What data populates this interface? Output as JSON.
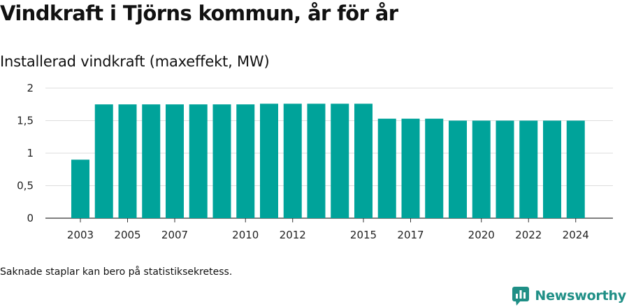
{
  "header": {
    "title": "Vindkraft i Tjörns kommun, år för år",
    "subtitle": "Installerad vindkraft (maxeffekt, MW)"
  },
  "footer": {
    "note": "Saknade staplar kan bero på statistiksekretess.",
    "brand": "Newsworthy"
  },
  "colors": {
    "bar": "#00a39a",
    "grid": "#dddddd",
    "brand": "#1f8f86"
  },
  "icons": {
    "brand_logo": "newsworthy-logo-icon"
  },
  "chart_data": {
    "type": "bar",
    "title": "Installerad vindkraft (maxeffekt, MW)",
    "xlabel": "",
    "ylabel": "",
    "ylim": [
      0,
      2
    ],
    "yticks": [
      0,
      0.5,
      1,
      1.5,
      2
    ],
    "ytick_labels": [
      "0",
      "0,5",
      "1",
      "1,5",
      "2"
    ],
    "grid": true,
    "legend": "none",
    "categories": [
      "2003",
      "2004",
      "2005",
      "2006",
      "2007",
      "2008",
      "2009",
      "2010",
      "2011",
      "2012",
      "2013",
      "2014",
      "2015",
      "2016",
      "2017",
      "2018",
      "2019",
      "2020",
      "2021",
      "2022",
      "2023",
      "2024"
    ],
    "values": [
      0.9,
      1.75,
      1.75,
      1.75,
      1.75,
      1.75,
      1.75,
      1.75,
      1.76,
      1.76,
      1.76,
      1.76,
      1.76,
      1.53,
      1.53,
      1.53,
      1.5,
      1.5,
      1.5,
      1.5,
      1.5,
      1.5
    ],
    "xtick_labels": [
      "2003",
      "2005",
      "2007",
      "2010",
      "2012",
      "2015",
      "2017",
      "2020",
      "2022",
      "2024"
    ]
  }
}
